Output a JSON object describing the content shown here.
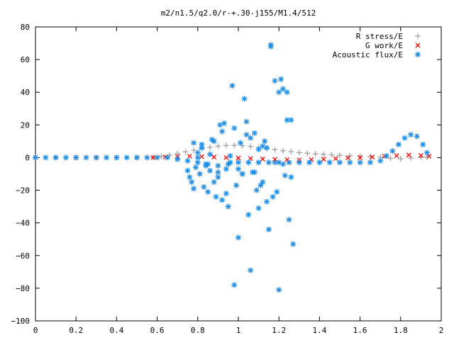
{
  "chart_data": {
    "type": "scatter",
    "title": "m2/n1.5/q2.0/r-+.30-j155/M1.4/512",
    "xlabel": "",
    "ylabel": "",
    "xlim": [
      0,
      2
    ],
    "ylim": [
      -100,
      80
    ],
    "x_ticks": [
      "0",
      "0.2",
      "0.4",
      "0.6",
      "0.8",
      "1",
      "1.2",
      "1.4",
      "1.6",
      "1.8",
      "2"
    ],
    "y_ticks": [
      "80",
      "60",
      "40",
      "20",
      "0",
      "−20",
      "−40",
      "−60",
      "−80",
      "−100"
    ],
    "x_tick_values": [
      0,
      0.2,
      0.4,
      0.6,
      0.8,
      1.0,
      1.2,
      1.4,
      1.6,
      1.8,
      2.0
    ],
    "y_tick_values": [
      80,
      60,
      40,
      20,
      0,
      -20,
      -40,
      -60,
      -80,
      -100
    ],
    "grid": false,
    "legend_position": "top-right",
    "series": [
      {
        "name": "R stress/E",
        "marker": "plus",
        "color": "#a0a0a0",
        "x": [
          0.0,
          0.1,
          0.2,
          0.3,
          0.4,
          0.5,
          0.58,
          0.62,
          0.66,
          0.7,
          0.74,
          0.78,
          0.82,
          0.86,
          0.9,
          0.94,
          0.98,
          1.02,
          1.06,
          1.1,
          1.14,
          1.18,
          1.22,
          1.26,
          1.3,
          1.34,
          1.38,
          1.42,
          1.46,
          1.5,
          1.55,
          1.6,
          1.65,
          1.7,
          1.75,
          1.8,
          1.85,
          1.9,
          1.93
        ],
        "y": [
          0,
          0,
          0,
          0,
          0,
          0,
          0.3,
          0.8,
          1.5,
          2.5,
          3.5,
          4.5,
          5.5,
          6.3,
          7.0,
          7.4,
          7.5,
          7.3,
          6.8,
          6.2,
          5.5,
          4.8,
          4.2,
          3.6,
          3.1,
          2.7,
          2.3,
          2.0,
          1.7,
          1.4,
          1.1,
          0.8,
          0.5,
          0.2,
          -0.5,
          -0.8,
          -0.3,
          0.2,
          0.3
        ]
      },
      {
        "name": "G work/E",
        "marker": "cross",
        "color": "#ff0000",
        "x": [
          0.0,
          0.1,
          0.2,
          0.3,
          0.4,
          0.5,
          0.58,
          0.64,
          0.7,
          0.76,
          0.82,
          0.88,
          0.94,
          1.0,
          1.06,
          1.12,
          1.18,
          1.24,
          1.3,
          1.36,
          1.42,
          1.48,
          1.54,
          1.6,
          1.66,
          1.72,
          1.78,
          1.84,
          1.9,
          1.94
        ],
        "y": [
          0,
          0,
          0,
          0,
          0,
          0,
          0,
          0.3,
          0.6,
          0.8,
          0.6,
          0.3,
          0.0,
          -0.3,
          -0.6,
          -0.9,
          -1.1,
          -1.3,
          -1.5,
          -1.3,
          -1.0,
          -0.6,
          -0.2,
          0.0,
          0.3,
          0.8,
          1.2,
          1.6,
          1.3,
          0.8
        ]
      },
      {
        "name": "Acoustic flux/E",
        "marker": "star",
        "color": "#1f8ee6",
        "x": [
          0.0,
          0.05,
          0.1,
          0.15,
          0.2,
          0.25,
          0.3,
          0.35,
          0.4,
          0.45,
          0.5,
          0.55,
          0.6,
          0.65,
          0.7,
          0.75,
          0.8,
          0.85,
          0.9,
          0.95,
          1.0,
          1.05,
          1.1,
          1.15,
          1.2,
          1.25,
          1.3,
          1.35,
          1.4,
          1.45,
          1.5,
          1.55,
          1.6,
          1.65,
          1.7,
          1.73,
          1.76,
          1.79,
          1.82,
          1.85,
          1.88,
          1.91,
          1.93,
          0.75,
          0.76,
          0.77,
          0.78,
          0.79,
          0.8,
          0.81,
          0.82,
          0.83,
          0.84,
          0.85,
          0.86,
          0.87,
          0.88,
          0.89,
          0.9,
          0.91,
          0.92,
          0.93,
          0.94,
          0.95,
          0.96,
          0.97,
          0.98,
          0.99,
          1.0,
          1.01,
          1.02,
          1.03,
          1.04,
          1.05,
          1.06,
          1.07,
          1.08,
          1.09,
          1.1,
          1.11,
          1.12,
          1.13,
          1.14,
          1.15,
          1.16,
          1.17,
          1.18,
          1.19,
          1.2,
          1.21,
          1.22,
          1.23,
          1.24,
          1.25,
          1.26,
          1.27,
          0.78,
          0.8,
          0.82,
          0.84,
          0.86,
          0.88,
          0.9,
          0.92,
          0.94,
          0.96,
          0.98,
          1.0,
          1.02,
          1.04,
          1.06,
          1.08,
          1.1,
          1.12,
          1.14,
          1.16,
          1.18,
          1.2,
          1.22,
          1.24,
          1.26
        ],
        "y": [
          0,
          0,
          0,
          0,
          0,
          0,
          0,
          0,
          0,
          0,
          0,
          0,
          0,
          0,
          -1,
          -2,
          -3,
          -4,
          -5,
          -4,
          -3,
          -3,
          -3,
          -3,
          -3,
          -3,
          -3,
          -3,
          -3,
          -3,
          -3,
          -3,
          -3,
          -3,
          -2,
          1,
          4,
          8,
          12,
          14,
          13,
          8,
          3,
          -8,
          -12,
          -15,
          -19,
          -6,
          3,
          -10,
          8,
          -18,
          -5,
          -21,
          -8,
          11,
          -15,
          -24,
          -9,
          20,
          -26,
          21,
          -22,
          -30,
          -3,
          44,
          -78,
          -17,
          -49,
          9,
          -10,
          36,
          22,
          -35,
          -69,
          -9,
          15,
          -20,
          -31,
          -17,
          7,
          10,
          -27,
          -44,
          69,
          -24,
          47,
          -21,
          -81,
          48,
          42,
          -11,
          23,
          -38,
          23,
          -53,
          9,
          0,
          6,
          -4,
          2,
          10,
          -12,
          16,
          -7,
          1,
          18,
          -7,
          -10,
          14,
          12,
          -9,
          5,
          -15,
          6,
          68,
          -3,
          40,
          -4,
          40,
          -12
        ]
      }
    ]
  }
}
